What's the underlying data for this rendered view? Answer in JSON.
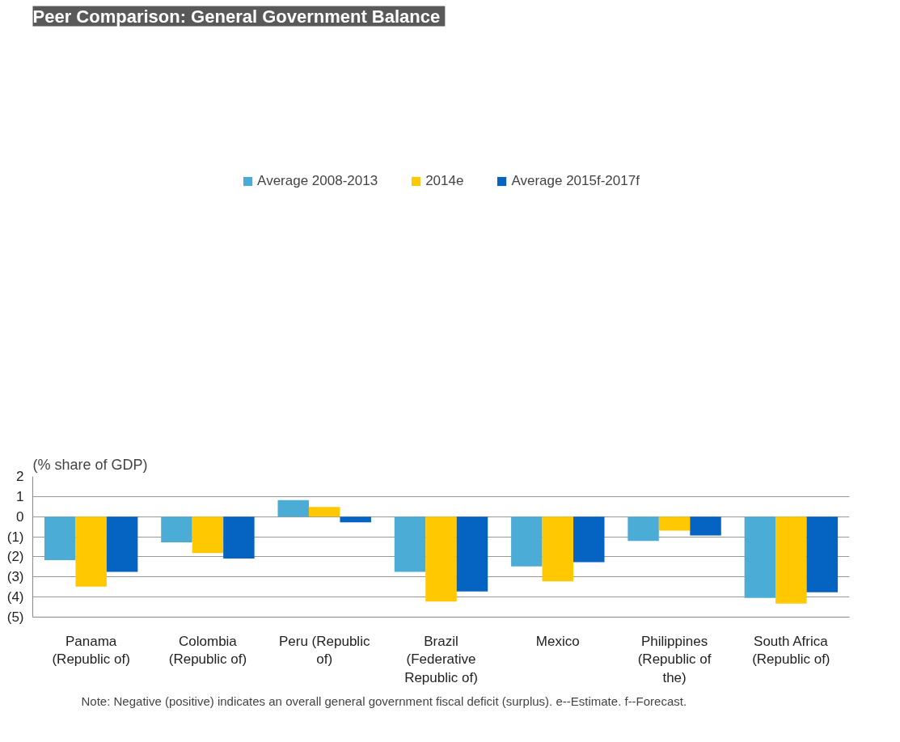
{
  "chart_data": {
    "type": "bar",
    "title": "Peer Comparison:  General Government Balance",
    "ylabel": "(% share of GDP)",
    "categories": [
      "Panama (Republic of)",
      "Colombia (Republic of)",
      "Peru (Republic of)",
      "Brazil (Federative Republic of)",
      "Mexico",
      "Philippines (Republic of the)",
      "South Africa (Republic of)"
    ],
    "series": [
      {
        "name": "Average 2008-2013",
        "color": "#4bacd6",
        "values": [
          -2.16,
          -1.28,
          0.82,
          -2.75,
          -2.48,
          -1.21,
          -4.04
        ]
      },
      {
        "name": "2014e",
        "color": "#ffc800",
        "values": [
          -3.48,
          -1.81,
          0.48,
          -4.23,
          -3.22,
          -0.7,
          -4.33
        ]
      },
      {
        "name": "Average 2015f-2017f",
        "color": "#0563c1",
        "values": [
          -2.75,
          -2.08,
          -0.28,
          -3.72,
          -2.26,
          -0.94,
          -3.76
        ]
      }
    ],
    "ylim": [
      -5,
      2
    ],
    "yticks": [
      {
        "value": -5,
        "label": "(5)"
      },
      {
        "value": -4,
        "label": "(4)"
      },
      {
        "value": -3,
        "label": "(3)"
      },
      {
        "value": -2,
        "label": "(2)"
      },
      {
        "value": -1,
        "label": "(1)"
      },
      0,
      1,
      2
    ],
    "grid": "y",
    "legend": "top",
    "annotations": [
      "Note: Negative (positive) indicates an overall general government fiscal deficit  (surplus). e--Estimate. f--Forecast."
    ]
  }
}
